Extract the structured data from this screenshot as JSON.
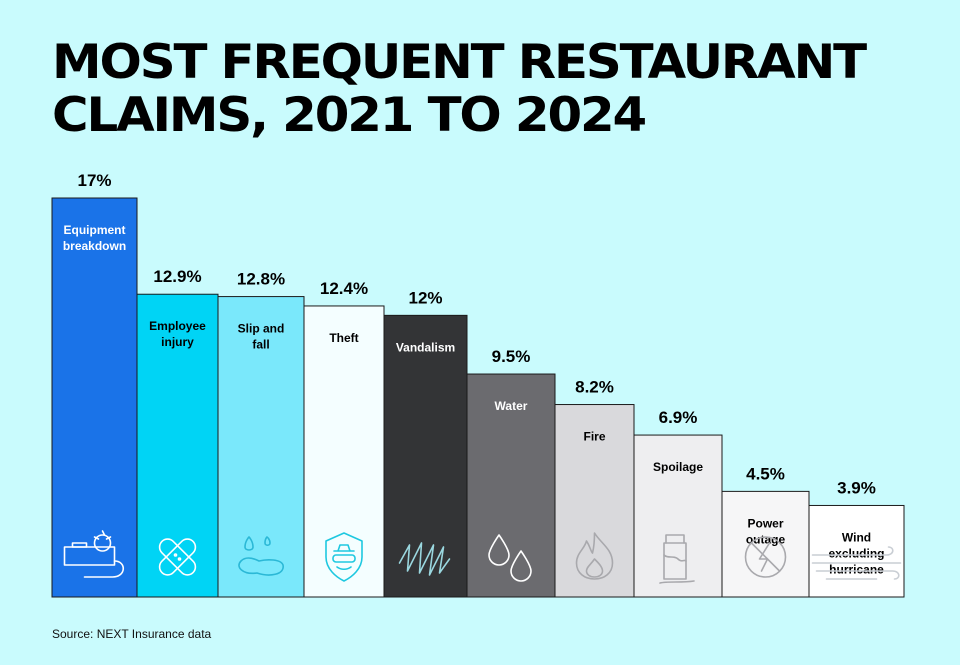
{
  "chart_data": {
    "type": "bar",
    "title": "MOST FREQUENT RESTAURANT CLAIMS, 2021 TO 2024",
    "categories": [
      "Equipment breakdown",
      "Employee injury",
      "Slip and fall",
      "Theft",
      "Vandalism",
      "Water",
      "Fire",
      "Spoilage",
      "Power outage",
      "Wind excluding hurricane"
    ],
    "category_lines": [
      [
        "Equipment",
        "breakdown"
      ],
      [
        "Employee",
        "injury"
      ],
      [
        "Slip and",
        "fall"
      ],
      [
        "Theft"
      ],
      [
        "Vandalism"
      ],
      [
        "Water"
      ],
      [
        "Fire"
      ],
      [
        "Spoilage"
      ],
      [
        "Power",
        "outage"
      ],
      [
        "Wind",
        "excluding",
        "hurricane"
      ]
    ],
    "values": [
      17,
      12.9,
      12.8,
      12.4,
      12,
      9.5,
      8.2,
      6.9,
      4.5,
      3.9
    ],
    "value_labels": [
      "17%",
      "12.9%",
      "12.8%",
      "12.4%",
      "12%",
      "9.5%",
      "8.2%",
      "6.9%",
      "4.5%",
      "3.9%"
    ],
    "colors": [
      "#1a73e8",
      "#00d4f5",
      "#7ae8fb",
      "#f4feff",
      "#333436",
      "#6b6b6f",
      "#d9d9dc",
      "#eeeef0",
      "#f6f6f7",
      "#ffffff"
    ],
    "label_colors": [
      "#ffffff",
      "#000000",
      "#000000",
      "#000000",
      "#ffffff",
      "#ffffff",
      "#000000",
      "#000000",
      "#000000",
      "#000000"
    ],
    "icon_colors": [
      "#ffffff",
      "#ffffff",
      "#2bb8d6",
      "#1ec8e0",
      "#9ad7df",
      "#ffffff",
      "#a9a9ad",
      "#a9a9ad",
      "#a9a9ad",
      "#c9ced4"
    ],
    "icons": [
      "saw-machine-icon",
      "bandage-icon",
      "spill-icon",
      "burglar-shield-icon",
      "scribble-icon",
      "water-drops-icon",
      "flame-icon",
      "spoiled-carton-icon",
      "no-power-icon",
      "wind-lines-icon"
    ],
    "ylim": [
      0,
      17
    ],
    "grid": false,
    "legend": "none"
  },
  "source": "Source: NEXT Insurance data"
}
